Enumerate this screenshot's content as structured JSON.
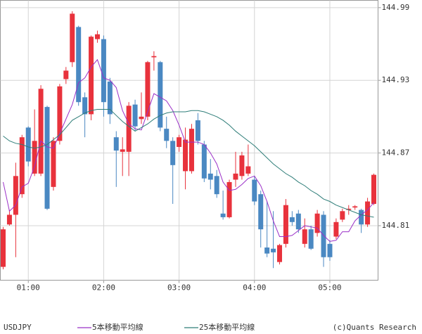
{
  "chart_data": {
    "type": "candlestick",
    "symbol": "USDJPY",
    "credit": "(c)Quants Research",
    "categories": [
      null,
      null,
      null,
      null,
      "01:00",
      null,
      null,
      null,
      null,
      null,
      null,
      null,
      null,
      null,
      null,
      null,
      "02:00",
      null,
      null,
      null,
      null,
      null,
      null,
      null,
      null,
      null,
      null,
      null,
      "03:00",
      null,
      null,
      null,
      null,
      null,
      null,
      null,
      null,
      null,
      null,
      null,
      "04:00",
      null,
      null,
      null,
      null,
      null,
      null,
      null,
      null,
      null,
      null,
      null,
      "05:00",
      null,
      null,
      null,
      null,
      null,
      null,
      null
    ],
    "open": [
      144.776,
      144.811,
      144.819,
      144.836,
      144.891,
      144.853,
      144.853,
      144.908,
      144.842,
      144.88,
      144.931,
      144.945,
      144.974,
      144.916,
      144.902,
      144.964,
      144.964,
      144.929,
      144.883,
      144.871,
      144.871,
      144.91,
      144.898,
      144.9,
      144.949,
      144.945,
      144.89,
      144.88,
      144.875,
      144.855,
      144.855,
      144.897,
      144.877,
      144.853,
      144.851,
      144.82,
      144.817,
      144.848,
      144.851,
      144.853,
      144.848,
      144.836,
      144.792,
      144.791,
      144.78,
      144.795,
      144.817,
      144.82,
      144.795,
      144.807,
      144.804,
      144.819,
      144.795,
      144.801,
      144.815,
      144.823,
      144.825,
      144.823,
      144.811,
      144.828
    ],
    "high": [
      144.809,
      144.823,
      144.862,
      144.885,
      144.892,
      144.906,
      144.926,
      144.909,
      144.883,
      144.927,
      144.941,
      144.987,
      144.975,
      144.92,
      144.967,
      144.971,
      144.967,
      144.932,
      144.888,
      144.883,
      144.912,
      144.914,
      144.92,
      144.946,
      144.954,
      144.946,
      144.9,
      144.883,
      144.885,
      144.891,
      144.894,
      144.903,
      144.88,
      144.865,
      144.856,
      144.839,
      144.848,
      144.871,
      144.871,
      144.877,
      144.851,
      144.839,
      144.83,
      144.822,
      144.795,
      144.832,
      144.822,
      144.823,
      144.816,
      144.81,
      144.823,
      144.822,
      144.798,
      144.816,
      144.824,
      144.827,
      144.827,
      144.824,
      144.833,
      144.853
    ],
    "low": [
      144.774,
      144.81,
      144.784,
      144.833,
      144.859,
      144.851,
      144.851,
      144.823,
      144.839,
      144.877,
      144.927,
      144.941,
      144.909,
      144.883,
      144.897,
      144.961,
      144.9,
      144.894,
      144.842,
      144.851,
      144.851,
      144.888,
      144.894,
      144.897,
      144.938,
      144.888,
      144.874,
      144.828,
      144.871,
      144.84,
      144.853,
      144.877,
      144.846,
      144.84,
      144.833,
      144.815,
      144.816,
      144.842,
      144.848,
      144.851,
      144.827,
      144.792,
      144.784,
      144.775,
      144.778,
      144.792,
      144.81,
      144.804,
      144.792,
      144.79,
      144.801,
      144.776,
      144.781,
      144.799,
      144.813,
      144.819,
      144.823,
      144.804,
      144.809,
      144.827
    ],
    "close": [
      144.807,
      144.819,
      144.851,
      144.883,
      144.863,
      144.88,
      144.923,
      144.824,
      144.88,
      144.925,
      144.938,
      144.985,
      144.912,
      144.902,
      144.966,
      144.968,
      144.912,
      144.902,
      144.872,
      144.873,
      144.909,
      144.892,
      144.9,
      144.945,
      144.95,
      144.891,
      144.88,
      144.86,
      144.883,
      144.881,
      144.89,
      144.88,
      144.849,
      144.848,
      144.836,
      144.817,
      144.846,
      144.853,
      144.868,
      144.859,
      144.83,
      144.807,
      144.787,
      144.788,
      144.794,
      144.827,
      144.813,
      144.807,
      144.807,
      144.791,
      144.82,
      144.784,
      144.784,
      144.813,
      144.822,
      144.824,
      144.826,
      144.811,
      144.83,
      144.852
    ],
    "up_color": "#e8323c",
    "down_color": "#4a88c2",
    "lines": [
      {
        "name": "5本移動平均線",
        "color": "#9b30c8",
        "values": [
          144.846,
          144.822,
          144.827,
          144.842,
          144.845,
          144.859,
          144.88,
          144.875,
          144.874,
          144.886,
          144.898,
          144.91,
          144.928,
          144.932,
          144.941,
          144.947,
          144.932,
          144.93,
          144.924,
          144.905,
          144.894,
          144.89,
          144.889,
          144.904,
          144.919,
          144.916,
          144.913,
          144.905,
          144.893,
          144.879,
          144.879,
          144.879,
          144.877,
          144.87,
          144.861,
          144.846,
          144.839,
          144.84,
          144.844,
          144.849,
          144.851,
          144.843,
          144.83,
          144.814,
          144.801,
          144.801,
          144.802,
          144.806,
          144.81,
          144.809,
          144.808,
          144.802,
          144.797,
          144.798,
          144.805,
          144.805,
          144.814,
          144.819,
          144.823,
          144.829
        ]
      },
      {
        "name": "25本移動平均線",
        "color": "#2e7d78",
        "values": [
          144.884,
          144.88,
          144.878,
          144.877,
          144.875,
          144.874,
          144.875,
          144.877,
          144.881,
          144.885,
          144.891,
          144.897,
          144.9,
          144.903,
          144.905,
          144.906,
          144.906,
          144.906,
          144.901,
          144.896,
          144.892,
          144.888,
          144.891,
          144.894,
          144.898,
          144.901,
          144.903,
          144.904,
          144.904,
          144.904,
          144.905,
          144.905,
          144.904,
          144.902,
          144.9,
          144.897,
          144.893,
          144.888,
          144.884,
          144.88,
          144.876,
          144.871,
          144.866,
          144.861,
          144.857,
          144.853,
          144.85,
          144.846,
          144.843,
          144.839,
          144.836,
          144.832,
          144.83,
          144.827,
          144.825,
          144.823,
          144.821,
          144.819,
          144.818,
          144.817
        ]
      }
    ],
    "ylim": [
      144.765,
      144.996
    ],
    "yticks": [
      144.81,
      144.87,
      144.93,
      144.99
    ],
    "grid": true
  }
}
